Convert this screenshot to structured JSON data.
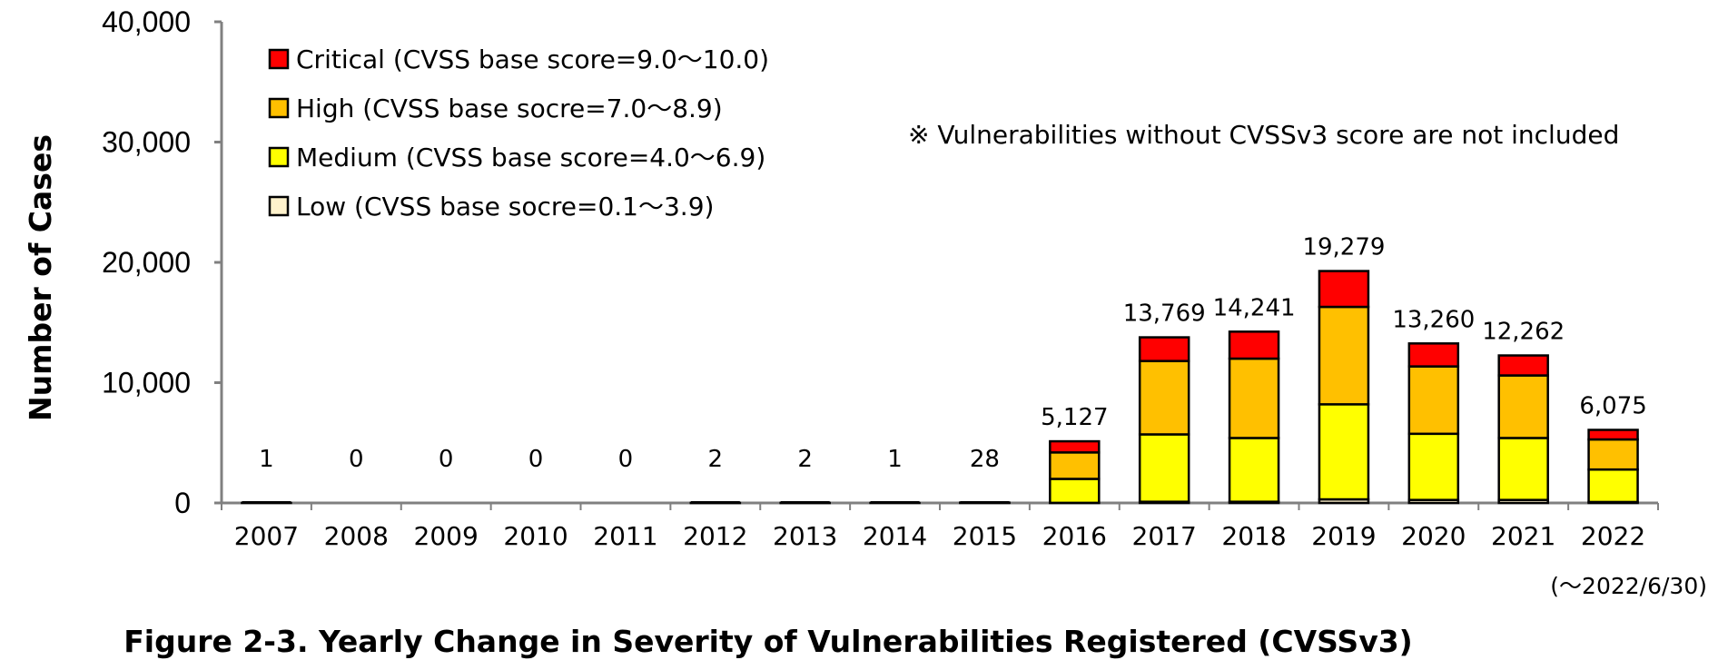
{
  "chart_data": {
    "type": "bar",
    "stacked": true,
    "title": "Figure 2-3. Yearly Change in Severity of Vulnerabilities Registered (CVSSv3)",
    "ylabel": "Number of Cases",
    "xlabel": "",
    "ylim": [
      0,
      40000
    ],
    "yticks": [
      0,
      10000,
      20000,
      30000,
      40000
    ],
    "ytick_labels": [
      "0",
      "10,000",
      "20,000",
      "30,000",
      "40,000"
    ],
    "categories": [
      "2007",
      "2008",
      "2009",
      "2010",
      "2011",
      "2012",
      "2013",
      "2014",
      "2015",
      "2016",
      "2017",
      "2018",
      "2019",
      "2020",
      "2021",
      "2022"
    ],
    "series": [
      {
        "name": "Low (CVSS base socre=0.1～3.9)",
        "color": "#fff2cc",
        "values": [
          0,
          0,
          0,
          0,
          0,
          0,
          0,
          0,
          0,
          10,
          100,
          100,
          300,
          250,
          250,
          80
        ]
      },
      {
        "name": "Medium (CVSS base score=4.0～6.9)",
        "color": "#ffff00",
        "values": [
          1,
          0,
          0,
          0,
          0,
          1,
          1,
          1,
          14,
          1990,
          5600,
          5300,
          7900,
          5500,
          5150,
          2700
        ]
      },
      {
        "name": "High (CVSS base socre=7.0～8.9)",
        "color": "#ffc000",
        "values": [
          0,
          0,
          0,
          0,
          0,
          1,
          1,
          0,
          10,
          2200,
          6100,
          6600,
          8100,
          5600,
          5200,
          2500
        ]
      },
      {
        "name": "Critical (CVSS base score=9.0～10.0)",
        "color": "#ff0000",
        "values": [
          0,
          0,
          0,
          0,
          0,
          0,
          0,
          0,
          4,
          927,
          1969,
          2241,
          2979,
          1910,
          1662,
          795
        ]
      }
    ],
    "totals": [
      1,
      0,
      0,
      0,
      0,
      2,
      2,
      1,
      28,
      5127,
      13769,
      14241,
      19279,
      13260,
      12262,
      6075
    ],
    "total_labels": [
      "1",
      "0",
      "0",
      "0",
      "0",
      "2",
      "2",
      "1",
      "28",
      "5,127",
      "13,769",
      "14,241",
      "19,279",
      "13,260",
      "12,262",
      "6,075"
    ],
    "legend_position": "top-left",
    "grid": false,
    "annotations": {
      "note": "※ Vulnerabilities without CVSSv3 score are not included",
      "period": "(～2022/6/30)"
    }
  }
}
